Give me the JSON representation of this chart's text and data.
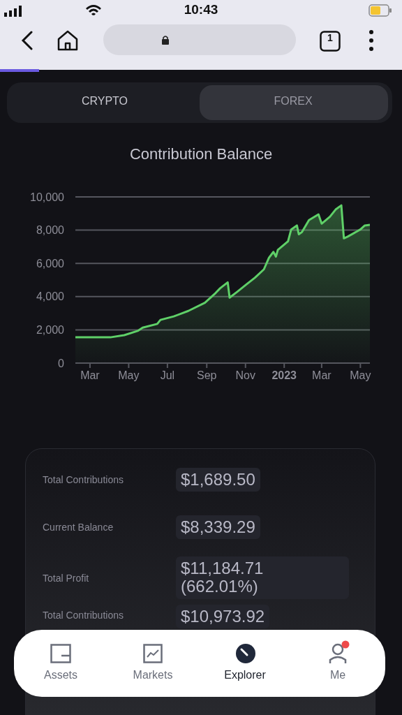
{
  "chart_data": {
    "type": "area",
    "title": "Contribution Balance",
    "x": [
      "2022-02-06",
      "2022-04-02",
      "2022-04-24",
      "2022-05-16",
      "2022-05-23",
      "2022-06-15",
      "2022-06-20",
      "2022-07-11",
      "2022-08-03",
      "2022-08-29",
      "2022-09-05",
      "2022-09-15",
      "2022-09-22",
      "2022-10-04",
      "2022-10-07",
      "2022-10-19",
      "2022-11-02",
      "2022-11-16",
      "2022-11-30",
      "2022-12-08",
      "2022-12-15",
      "2022-12-19",
      "2022-12-22",
      "2023-01-07",
      "2023-01-12",
      "2023-01-21",
      "2023-01-24",
      "2023-01-29",
      "2023-02-09",
      "2023-02-24",
      "2023-03-01",
      "2023-03-14",
      "2023-03-23",
      "2023-04-01",
      "2023-04-05",
      "2023-04-11",
      "2023-05-01",
      "2023-05-08",
      "2023-05-16"
    ],
    "series": [
      {
        "color": "#5fd068",
        "values": [
          1550,
          1550,
          1680,
          1950,
          2130,
          2360,
          2600,
          2810,
          3140,
          3630,
          3870,
          4220,
          4500,
          4860,
          3940,
          4290,
          4720,
          5140,
          5640,
          6340,
          6690,
          6410,
          6810,
          7330,
          8040,
          8280,
          7750,
          7890,
          8600,
          8950,
          8390,
          8810,
          9240,
          9490,
          7510,
          7610,
          8040,
          8280,
          8320
        ]
      }
    ],
    "xlim": [
      "2022-02-06",
      "2023-05-16"
    ],
    "xticks": [
      {
        "value": "2022-03-01",
        "label": "Mar"
      },
      {
        "value": "2022-05-01",
        "label": "May"
      },
      {
        "value": "2022-07-01",
        "label": "Jul"
      },
      {
        "value": "2022-09-01",
        "label": "Sep"
      },
      {
        "value": "2022-11-01",
        "label": "Nov"
      },
      {
        "value": "2023-01-01",
        "label": "2023"
      },
      {
        "value": "2023-03-01",
        "label": "Mar"
      },
      {
        "value": "2023-05-01",
        "label": "May"
      }
    ],
    "ylim": [
      0,
      10000
    ],
    "yticks": [
      0,
      {
        "value": 2000,
        "label": "2,000"
      },
      {
        "value": 4000,
        "label": "4,000"
      },
      {
        "value": 6000,
        "label": "6,000"
      },
      {
        "value": 8000,
        "label": "8,000"
      },
      {
        "value": 10000,
        "label": "10,000"
      }
    ],
    "grid": "y",
    "annotations": [
      "10:43",
      "1",
      "CRYPTO",
      "FOREX",
      "Total Contributions",
      "$1,689.50",
      "Current Balance",
      "$8,339.29",
      "Total Profit",
      "$11,184.71 (662.01%)",
      "Total Contributions",
      "$10,973.92",
      "Assets",
      "Markets",
      "Explorer",
      "Me"
    ]
  }
}
